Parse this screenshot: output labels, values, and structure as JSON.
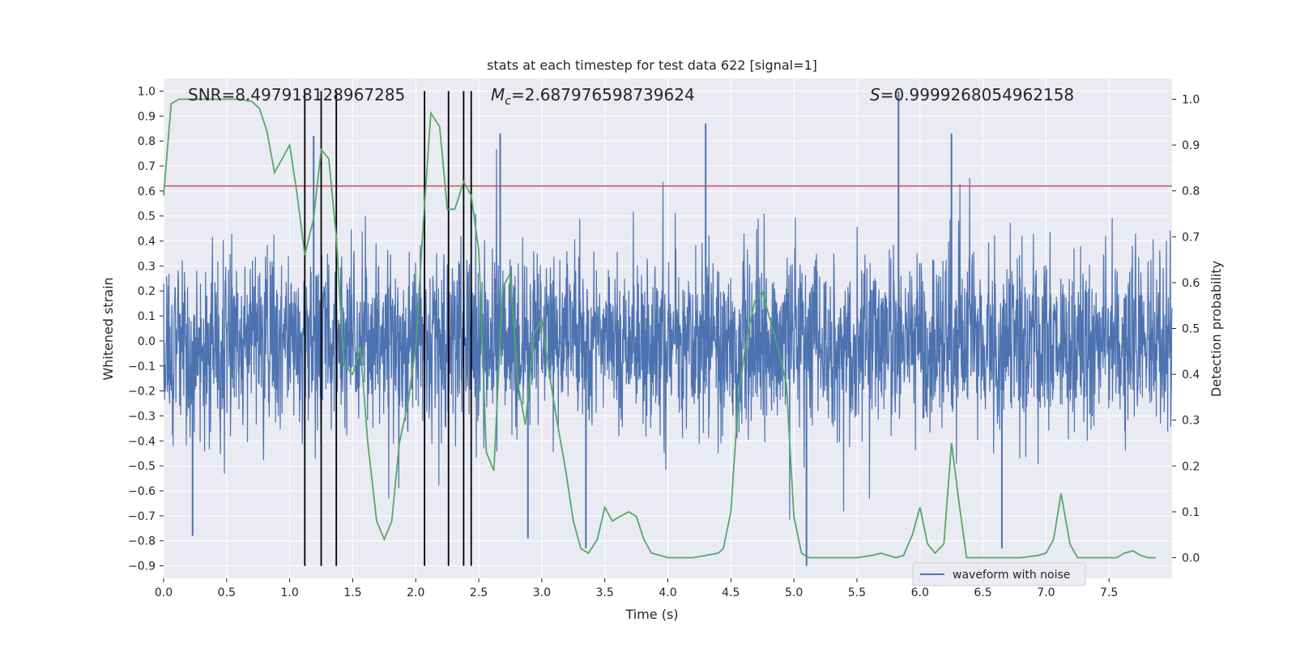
{
  "chart_data": {
    "type": "line",
    "title": "stats at each timestep for test data 622 [signal=1]",
    "xlabel": "Time (s)",
    "ylabel": "Whitened strain",
    "y2label": "Detection probability",
    "xlim": [
      0,
      8.0
    ],
    "ylim": [
      -0.95,
      1.05
    ],
    "y2lim": [
      -0.045,
      1.045
    ],
    "xticks": [
      "0.0",
      "0.5",
      "1.0",
      "1.5",
      "2.0",
      "2.5",
      "3.0",
      "3.5",
      "4.0",
      "4.5",
      "5.0",
      "5.5",
      "6.0",
      "6.5",
      "7.0",
      "7.5"
    ],
    "yticks": [
      "−0.9",
      "−0.8",
      "−0.7",
      "−0.6",
      "−0.5",
      "−0.4",
      "−0.3",
      "−0.2",
      "−0.1",
      "0.0",
      "0.1",
      "0.2",
      "0.3",
      "0.4",
      "0.5",
      "0.6",
      "0.7",
      "0.8",
      "0.9",
      "1.0"
    ],
    "y2ticks": [
      "0.0",
      "0.1",
      "0.2",
      "0.3",
      "0.4",
      "0.5",
      "0.6",
      "0.7",
      "0.8",
      "0.9",
      "1.0"
    ],
    "grid": true,
    "legend_placement": "bottom-right",
    "annotations": {
      "snr": "SNR=8.497918128967285",
      "mc_symbol": "M",
      "mc_sub": "c",
      "mc_value": "=2.687976598739624",
      "s_symbol": "S",
      "s_value": "=0.9999268054962158"
    },
    "threshold": 0.62,
    "vertical_lines": [
      1.12,
      1.25,
      1.37,
      2.07,
      2.26,
      2.38,
      2.44
    ],
    "waveform": {
      "name": "waveform with noise",
      "color": "#4c72b0",
      "typical_amplitude": 0.28,
      "spike_peaks": [
        {
          "t": 4.3,
          "v": 0.87
        },
        {
          "t": 5.83,
          "v": 1.0
        },
        {
          "t": 6.25,
          "v": 0.83
        },
        {
          "t": 2.67,
          "v": 0.83
        },
        {
          "t": 1.19,
          "v": 0.82
        },
        {
          "t": 0.23,
          "v": -0.78
        },
        {
          "t": 5.1,
          "v": -0.9
        },
        {
          "t": 3.35,
          "v": -0.83
        },
        {
          "t": 6.65,
          "v": -0.83
        },
        {
          "t": 2.89,
          "v": -0.79
        }
      ]
    },
    "detection_probability": {
      "color": "#55a868",
      "x": [
        0.0,
        0.06,
        0.12,
        0.2,
        0.3,
        0.4,
        0.5,
        0.6,
        0.7,
        0.76,
        0.82,
        0.88,
        0.94,
        1.0,
        1.06,
        1.12,
        1.19,
        1.25,
        1.31,
        1.37,
        1.43,
        1.5,
        1.56,
        1.62,
        1.69,
        1.75,
        1.81,
        1.87,
        1.94,
        2.0,
        2.06,
        2.12,
        2.19,
        2.25,
        2.31,
        2.38,
        2.44,
        2.5,
        2.56,
        2.62,
        2.69,
        2.75,
        2.81,
        2.87,
        2.94,
        3.0,
        3.06,
        3.12,
        3.19,
        3.25,
        3.31,
        3.37,
        3.44,
        3.5,
        3.56,
        3.62,
        3.69,
        3.75,
        3.81,
        3.87,
        3.94,
        4.0,
        4.1,
        4.2,
        4.3,
        4.4,
        4.44,
        4.5,
        4.56,
        4.62,
        4.69,
        4.75,
        4.81,
        4.87,
        4.94,
        5.0,
        5.06,
        5.12,
        5.3,
        5.5,
        5.62,
        5.69,
        5.75,
        5.81,
        5.87,
        5.94,
        6.0,
        6.06,
        6.12,
        6.19,
        6.25,
        6.31,
        6.37,
        6.44,
        6.6,
        6.8,
        6.94,
        7.0,
        7.06,
        7.12,
        7.19,
        7.25,
        7.31,
        7.44,
        7.56,
        7.62,
        7.69,
        7.75,
        7.81,
        7.87
      ],
      "y": [
        0.79,
        0.99,
        1.0,
        1.0,
        1.0,
        1.0,
        1.0,
        1.0,
        0.995,
        0.98,
        0.93,
        0.84,
        0.87,
        0.9,
        0.79,
        0.66,
        0.74,
        0.89,
        0.87,
        0.7,
        0.42,
        0.4,
        0.46,
        0.25,
        0.08,
        0.04,
        0.08,
        0.25,
        0.34,
        0.46,
        0.73,
        0.97,
        0.94,
        0.76,
        0.76,
        0.82,
        0.79,
        0.67,
        0.23,
        0.19,
        0.59,
        0.62,
        0.38,
        0.29,
        0.49,
        0.52,
        0.4,
        0.3,
        0.19,
        0.08,
        0.02,
        0.01,
        0.04,
        0.11,
        0.08,
        0.09,
        0.1,
        0.09,
        0.04,
        0.01,
        0.005,
        0.0,
        0.0,
        0.0,
        0.005,
        0.01,
        0.02,
        0.1,
        0.35,
        0.47,
        0.56,
        0.58,
        0.52,
        0.46,
        0.38,
        0.09,
        0.01,
        0.0,
        0.0,
        0.0,
        0.005,
        0.01,
        0.005,
        0.0,
        0.005,
        0.05,
        0.11,
        0.03,
        0.01,
        0.03,
        0.25,
        0.12,
        0.0,
        0.0,
        0.0,
        0.0,
        0.005,
        0.01,
        0.04,
        0.14,
        0.03,
        0.0,
        0.0,
        0.0,
        0.0,
        0.01,
        0.015,
        0.005,
        0.0,
        0.0
      ]
    }
  }
}
